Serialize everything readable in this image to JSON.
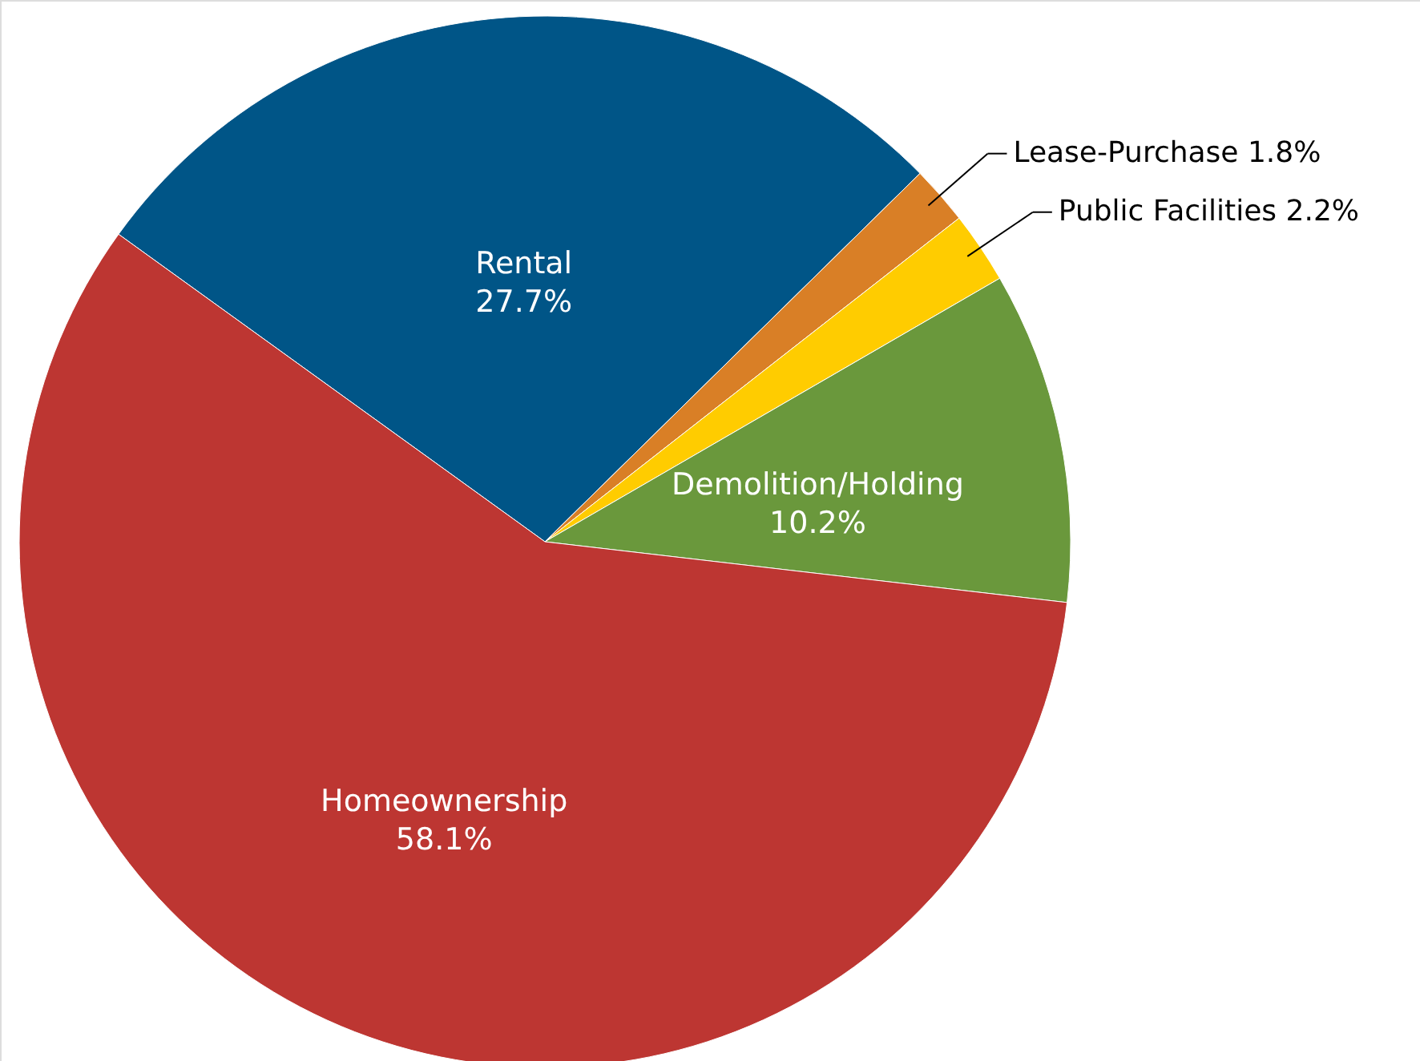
{
  "chart_data": {
    "type": "pie",
    "categories": [
      "Rental",
      "Lease-Purchase",
      "Public Facilities",
      "Demolition/Holding",
      "Homeownership"
    ],
    "values": [
      27.7,
      1.8,
      2.2,
      10.2,
      58.1
    ],
    "value_labels": [
      "27.7%",
      "1.8%",
      "2.2%",
      "10.2%",
      "58.1%"
    ],
    "colors": [
      "#005587",
      "#d97f26",
      "#ffcc00",
      "#6a983c",
      "#bd3632"
    ]
  }
}
